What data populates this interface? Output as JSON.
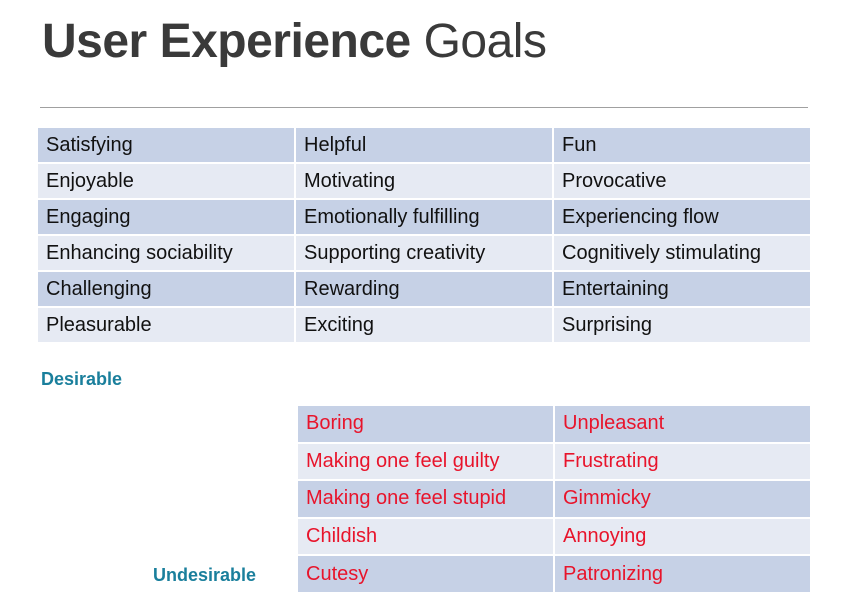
{
  "title": {
    "bold": "User Experience",
    "regular": "Goals"
  },
  "desirable": {
    "label": "Desirable",
    "rows": [
      [
        "Satisfying",
        "Helpful",
        "Fun"
      ],
      [
        "Enjoyable",
        "Motivating",
        "Provocative"
      ],
      [
        "Engaging",
        "Emotionally fulfilling",
        "Experiencing flow"
      ],
      [
        "Enhancing sociability",
        "Supporting creativity",
        "Cognitively stimulating"
      ],
      [
        "Challenging",
        "Rewarding",
        "Entertaining"
      ],
      [
        "Pleasurable",
        "Exciting",
        "Surprising"
      ]
    ]
  },
  "undesirable": {
    "label": "Undesirable",
    "rows": [
      [
        "Boring",
        "Unpleasant"
      ],
      [
        "Making one feel guilty",
        "Frustrating"
      ],
      [
        "Making one feel stupid",
        "Gimmicky"
      ],
      [
        "Childish",
        "Annoying"
      ],
      [
        "Cutesy",
        "Patronizing"
      ]
    ]
  },
  "colors": {
    "row_dark": "#c6d1e6",
    "row_light": "#e6eaf3",
    "undesirable_text": "#e8142b",
    "label_text": "#1a7f9c",
    "title_text": "#3a3a3a"
  }
}
